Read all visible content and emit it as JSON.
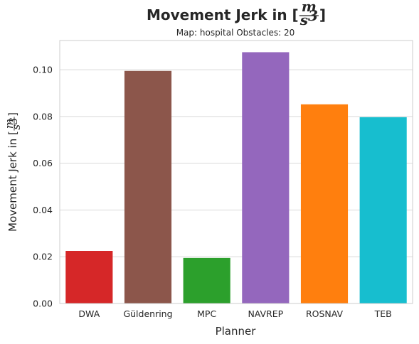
{
  "chart_data": {
    "type": "bar",
    "title_prefix": "Movement Jerk in [",
    "unit_num": "m",
    "unit_den": "s",
    "unit_exp": "3",
    "title_suffix": "]",
    "subtitle": "Map: hospital Obstacles: 20",
    "xlabel": "Planner",
    "ylabel_prefix": "Movement Jerk in [",
    "ylabel_suffix": "]",
    "categories": [
      "DWA",
      "Güldenring",
      "MPC",
      "NAVREP",
      "ROSNAV",
      "TEB"
    ],
    "values": [
      0.0225,
      0.0995,
      0.0195,
      0.1075,
      0.0852,
      0.0797
    ],
    "colors": [
      "#d62728",
      "#8c564b",
      "#2ca02c",
      "#9467bd",
      "#ff7f0e",
      "#17becf"
    ],
    "ylim": [
      0,
      0.1125
    ],
    "yticks": [
      0.0,
      0.02,
      0.04,
      0.06,
      0.08,
      0.1
    ],
    "ytick_labels": [
      "0.00",
      "0.02",
      "0.04",
      "0.06",
      "0.08",
      "0.10"
    ],
    "grid": true
  }
}
